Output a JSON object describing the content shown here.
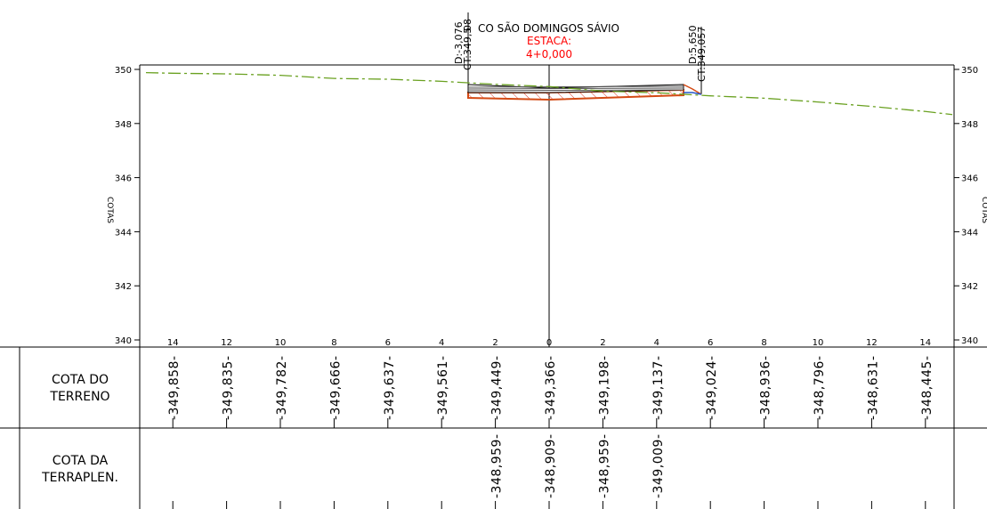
{
  "header": {
    "title": "CO SÃO DOMINGOS SÁVIO",
    "estaca_label": "ESTACA:",
    "estaca_value": "4+0,000",
    "left_offset": "D:-3,076",
    "left_cota": "CT:349,5",
    "left_cota_extra": "08",
    "right_offset": "D:5,650",
    "right_cota": "CT:349,057"
  },
  "axis": {
    "label": "COTAS",
    "y_ticks": [
      "350",
      "348",
      "346",
      "344",
      "342",
      "340"
    ],
    "x_ticks": [
      "14",
      "12",
      "10",
      "8",
      "6",
      "4",
      "2",
      "0",
      "2",
      "4",
      "6",
      "8",
      "10",
      "12",
      "14"
    ]
  },
  "table": {
    "rows": [
      {
        "label_line1": "COTA DO",
        "label_line2": "TERRENO",
        "values": [
          "349,858",
          "349,835",
          "349,782",
          "349,666",
          "349,637",
          "349,561",
          "349,449",
          "349,366",
          "349,198",
          "349,137",
          "349,024",
          "348,936",
          "348,796",
          "348,631",
          "348,445"
        ]
      },
      {
        "label_line1": "COTA DA",
        "label_line2": "TERRAPLEN.",
        "values": [
          "",
          "",
          "",
          "",
          "",
          "",
          "348,959",
          "348,909",
          "348,959",
          "349,009",
          "",
          "",
          "",
          "",
          ""
        ]
      }
    ]
  },
  "chart_data": {
    "type": "line",
    "title": "",
    "xlabel": "",
    "ylabel": "COTAS",
    "xlim": [
      -15,
      15
    ],
    "ylim": [
      340,
      350
    ],
    "x_ticks": [
      -14,
      -12,
      -10,
      -8,
      -6,
      -4,
      -2,
      0,
      2,
      4,
      6,
      8,
      10,
      12,
      14
    ],
    "y_ticks": [
      340,
      342,
      344,
      346,
      348,
      350
    ],
    "grid": false,
    "series": [
      {
        "color": "#6aa121",
        "style": "dashed",
        "x": [
          -15,
          -14,
          -12,
          -10,
          -8,
          -6,
          -4,
          -2,
          0,
          2,
          4,
          6,
          8,
          10,
          12,
          14,
          15
        ],
        "values": [
          349.88,
          349.858,
          349.835,
          349.782,
          349.666,
          349.637,
          349.561,
          349.449,
          349.366,
          349.198,
          349.137,
          349.024,
          348.936,
          348.796,
          348.631,
          348.445,
          348.33
        ]
      },
      {
        "color": "#d44a14",
        "style": "solid",
        "x": [
          -3.076,
          -2,
          0,
          2,
          4,
          5.0
        ],
        "values": [
          349.0,
          348.959,
          348.909,
          348.959,
          349.009,
          349.03
        ]
      }
    ],
    "offsets": {
      "left_x": -3.076,
      "right_x": 5.65,
      "left_cota": 349.5,
      "right_cota": 349.057
    }
  }
}
